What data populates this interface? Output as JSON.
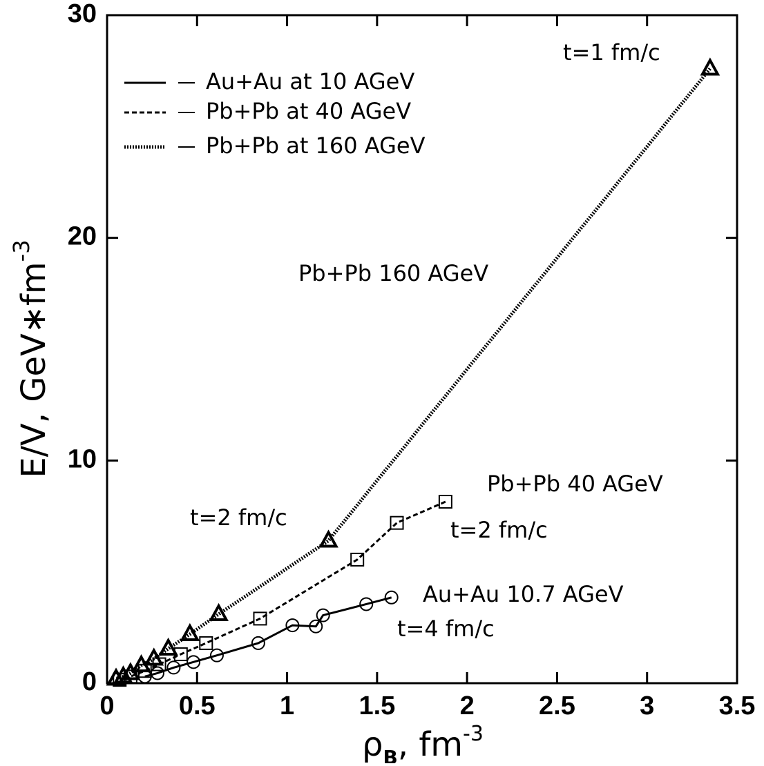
{
  "chart_data": {
    "type": "line",
    "x_label": [
      "ρ",
      "B",
      ", fm",
      "-3"
    ],
    "y_label": [
      "E/V, GeV∗fm",
      "-3"
    ],
    "xlim": [
      0,
      3.5
    ],
    "xticks": [
      0,
      0.5,
      1,
      1.5,
      2,
      2.5,
      3,
      3.5
    ],
    "ylim": [
      0,
      30
    ],
    "yticks": [
      0,
      10,
      20,
      30
    ],
    "series": [
      {
        "name": "Au+Au at 10 AGeV",
        "color": "#000000",
        "dash": "solid",
        "marker": "circle",
        "x": [
          1.58,
          1.44,
          1.2,
          1.16,
          1.03,
          0.84,
          0.61,
          0.48,
          0.37,
          0.28,
          0.21
        ],
        "values": [
          3.85,
          3.55,
          3.05,
          2.55,
          2.6,
          1.8,
          1.25,
          0.95,
          0.7,
          0.45,
          0.3
        ]
      },
      {
        "name": "Pb+Pb at 40 AGeV",
        "color": "#000000",
        "dash": "dashed",
        "marker": "square",
        "x": [
          1.88,
          1.61,
          1.39,
          0.85,
          0.55,
          0.41,
          0.29,
          0.21,
          0.13,
          0.07
        ],
        "values": [
          8.15,
          7.2,
          5.55,
          2.9,
          1.8,
          1.3,
          0.85,
          0.55,
          0.3,
          0.15
        ]
      },
      {
        "name": "Pb+Pb at 160 AGeV",
        "color": "#000000",
        "dash": "dotted",
        "marker": "triangle",
        "x": [
          3.35,
          1.23,
          0.62,
          0.46,
          0.34,
          0.26,
          0.19,
          0.13,
          0.09,
          0.05
        ],
        "values": [
          27.6,
          6.4,
          3.1,
          2.2,
          1.55,
          1.1,
          0.8,
          0.45,
          0.3,
          0.2
        ]
      }
    ],
    "annotations": [
      "t=1 fm/c",
      "Pb+Pb 160 AGeV",
      "t=2 fm/c",
      "Pb+Pb 40 AGeV",
      "t=2 fm/c",
      "Au+Au 10.7 AGeV",
      "t=4 fm/c"
    ],
    "legend": "upper left"
  }
}
